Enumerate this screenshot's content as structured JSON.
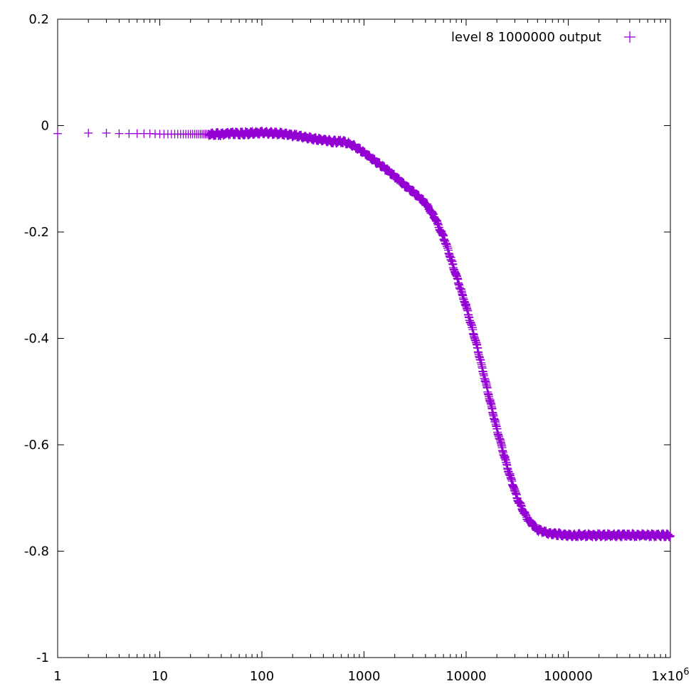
{
  "chart_data": {
    "type": "scatter",
    "title": "",
    "xlabel": "",
    "ylabel": "",
    "x_scale": "log",
    "xlim": [
      1,
      1000000
    ],
    "ylim": [
      -1,
      0.2
    ],
    "grid": false,
    "legend_position": "top-right",
    "x_ticks": [
      {
        "value": 1,
        "label": "1"
      },
      {
        "value": 10,
        "label": "10"
      },
      {
        "value": 100,
        "label": "100"
      },
      {
        "value": 1000,
        "label": "1000"
      },
      {
        "value": 10000,
        "label": "10000"
      },
      {
        "value": 100000,
        "label": "100000"
      },
      {
        "value": 1000000,
        "label": "1x10",
        "sup": "6"
      }
    ],
    "y_ticks": [
      {
        "value": 0.2,
        "label": "0.2"
      },
      {
        "value": 0,
        "label": "0"
      },
      {
        "value": -0.2,
        "label": "-0.2"
      },
      {
        "value": -0.4,
        "label": "-0.4"
      },
      {
        "value": -0.6,
        "label": "-0.6"
      },
      {
        "value": -0.8,
        "label": "-0.8"
      },
      {
        "value": -1,
        "label": "-1"
      }
    ],
    "series": [
      {
        "name": "level 8 1000000 output",
        "color": "#9400d3",
        "marker": "plus",
        "points": [
          [
            1,
            -0.015
          ],
          [
            2,
            -0.014
          ],
          [
            3,
            -0.014
          ],
          [
            4,
            -0.015
          ],
          [
            5,
            -0.015
          ],
          [
            6,
            -0.015
          ],
          [
            7,
            -0.015
          ],
          [
            8,
            -0.015
          ],
          [
            10,
            -0.016
          ],
          [
            13,
            -0.016
          ],
          [
            16,
            -0.016
          ],
          [
            20,
            -0.016
          ],
          [
            25,
            -0.016
          ],
          [
            32,
            -0.016
          ],
          [
            40,
            -0.016
          ],
          [
            50,
            -0.015
          ],
          [
            63,
            -0.015
          ],
          [
            80,
            -0.014
          ],
          [
            100,
            -0.013
          ],
          [
            126,
            -0.014
          ],
          [
            158,
            -0.015
          ],
          [
            200,
            -0.018
          ],
          [
            250,
            -0.021
          ],
          [
            316,
            -0.024
          ],
          [
            400,
            -0.027
          ],
          [
            500,
            -0.03
          ],
          [
            630,
            -0.03
          ],
          [
            794,
            -0.038
          ],
          [
            1000,
            -0.05
          ],
          [
            1259,
            -0.065
          ],
          [
            1585,
            -0.08
          ],
          [
            1995,
            -0.095
          ],
          [
            2512,
            -0.112
          ],
          [
            3162,
            -0.128
          ],
          [
            3981,
            -0.145
          ],
          [
            5012,
            -0.175
          ],
          [
            6310,
            -0.22
          ],
          [
            7943,
            -0.28
          ],
          [
            10000,
            -0.34
          ],
          [
            12589,
            -0.41
          ],
          [
            15849,
            -0.49
          ],
          [
            19953,
            -0.57
          ],
          [
            25119,
            -0.64
          ],
          [
            31623,
            -0.7
          ],
          [
            39811,
            -0.74
          ],
          [
            50119,
            -0.76
          ],
          [
            63096,
            -0.766
          ],
          [
            79433,
            -0.768
          ],
          [
            100000,
            -0.77
          ],
          [
            200000,
            -0.77
          ],
          [
            400000,
            -0.77
          ],
          [
            700000,
            -0.77
          ],
          [
            1000000,
            -0.77
          ]
        ]
      }
    ]
  }
}
